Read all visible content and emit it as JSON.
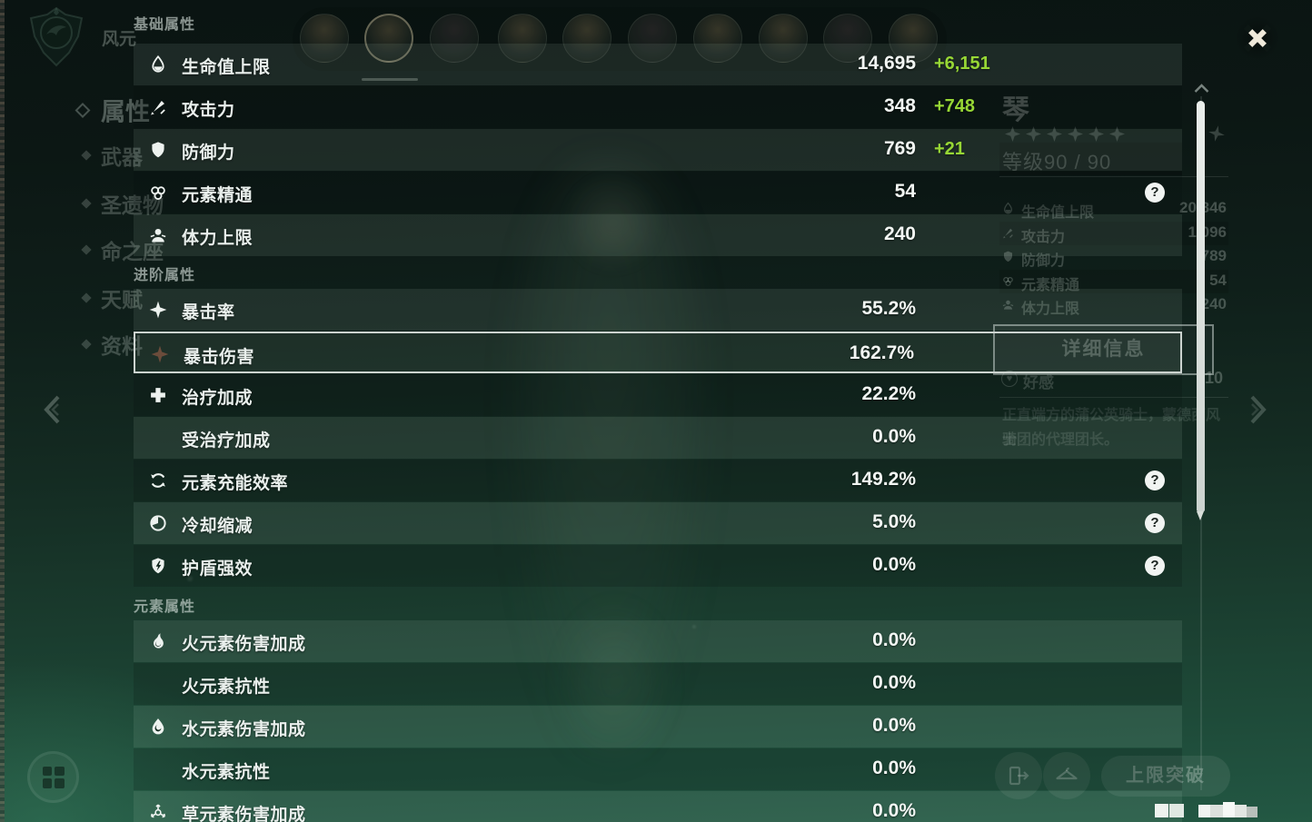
{
  "colors": {
    "bonus_green": "#97d735",
    "highlight_border": "#ccd3cf",
    "help_bg": "#f1f4f2",
    "scrollbar_thumb": "#dfe5e1"
  },
  "overlay": {
    "help_glyph": "?",
    "sections": [
      {
        "title": "基础属性",
        "rows": [
          {
            "icon": "hp-icon",
            "label": "生命值上限",
            "value": "14,695",
            "bonus": "+6,151",
            "shade": "light"
          },
          {
            "icon": "atk-icon",
            "label": "攻击力",
            "value": "348",
            "bonus": "+748",
            "shade": "dark"
          },
          {
            "icon": "def-icon",
            "label": "防御力",
            "value": "769",
            "bonus": "+21",
            "shade": "light"
          },
          {
            "icon": "elemental-mastery-icon",
            "label": "元素精通",
            "value": "54",
            "help": true,
            "shade": "dark"
          },
          {
            "icon": "stamina-icon",
            "label": "体力上限",
            "value": "240",
            "shade": "light"
          }
        ]
      },
      {
        "title": "进阶属性",
        "rows": [
          {
            "icon": "crit-rate-icon",
            "label": "暴击率",
            "value": "55.2%",
            "shade": "light"
          },
          {
            "icon": "crit-dmg-icon",
            "label": "暴击伤害",
            "value": "162.7%",
            "shade": "highlight"
          },
          {
            "icon": "healing-bonus-icon",
            "label": "治疗加成",
            "value": "22.2%",
            "shade": "dark"
          },
          {
            "icon": "",
            "label": "受治疗加成",
            "value": "0.0%",
            "shade": "light"
          },
          {
            "icon": "energy-recharge-icon",
            "label": "元素充能效率",
            "value": "149.2%",
            "help": true,
            "shade": "dark"
          },
          {
            "icon": "cooldown-icon",
            "label": "冷却缩减",
            "value": "5.0%",
            "help": true,
            "shade": "light"
          },
          {
            "icon": "shield-strength-icon",
            "label": "护盾强效",
            "value": "0.0%",
            "help": true,
            "shade": "dark"
          }
        ]
      },
      {
        "title": "元素属性",
        "rows": [
          {
            "icon": "pyro-icon",
            "label": "火元素伤害加成",
            "value": "0.0%",
            "shade": "light"
          },
          {
            "icon": "",
            "label": "火元素抗性",
            "value": "0.0%",
            "shade": "dark"
          },
          {
            "icon": "hydro-icon",
            "label": "水元素伤害加成",
            "value": "0.0%",
            "shade": "light"
          },
          {
            "icon": "",
            "label": "水元素抗性",
            "value": "0.0%",
            "shade": "dark"
          },
          {
            "icon": "dendro-icon",
            "label": "草元素伤害加成",
            "value": "0.0%",
            "shade": "light"
          }
        ]
      }
    ]
  },
  "background": {
    "element_label": "风元素",
    "sidebar": {
      "items": [
        "属性",
        "武器",
        "圣遗物",
        "命之座",
        "天赋",
        "资料"
      ],
      "active_index": 0
    },
    "party": {
      "avatar_count": 10,
      "selected_index": 1
    },
    "character": {
      "name": "琴",
      "star_count": 6,
      "level": "等级90 / 90",
      "stats": [
        {
          "icon": "hp-icon",
          "label": "生命值上限",
          "value": "20,846"
        },
        {
          "icon": "atk-icon",
          "label": "攻击力",
          "value": "1,096"
        },
        {
          "icon": "def-icon",
          "label": "防御力",
          "value": "789"
        },
        {
          "icon": "elemental-mastery-icon",
          "label": "元素精通",
          "value": "54"
        },
        {
          "icon": "stamina-icon",
          "label": "体力上限",
          "value": "240"
        }
      ],
      "detail_button": "详细信息",
      "friendship_label": "好感",
      "friendship_level": "10",
      "description_lines": [
        "正直端方的蒲公英骑士，蒙德西风骑",
        "士团的代理团长。"
      ]
    },
    "ascend_button": "上限突破"
  }
}
